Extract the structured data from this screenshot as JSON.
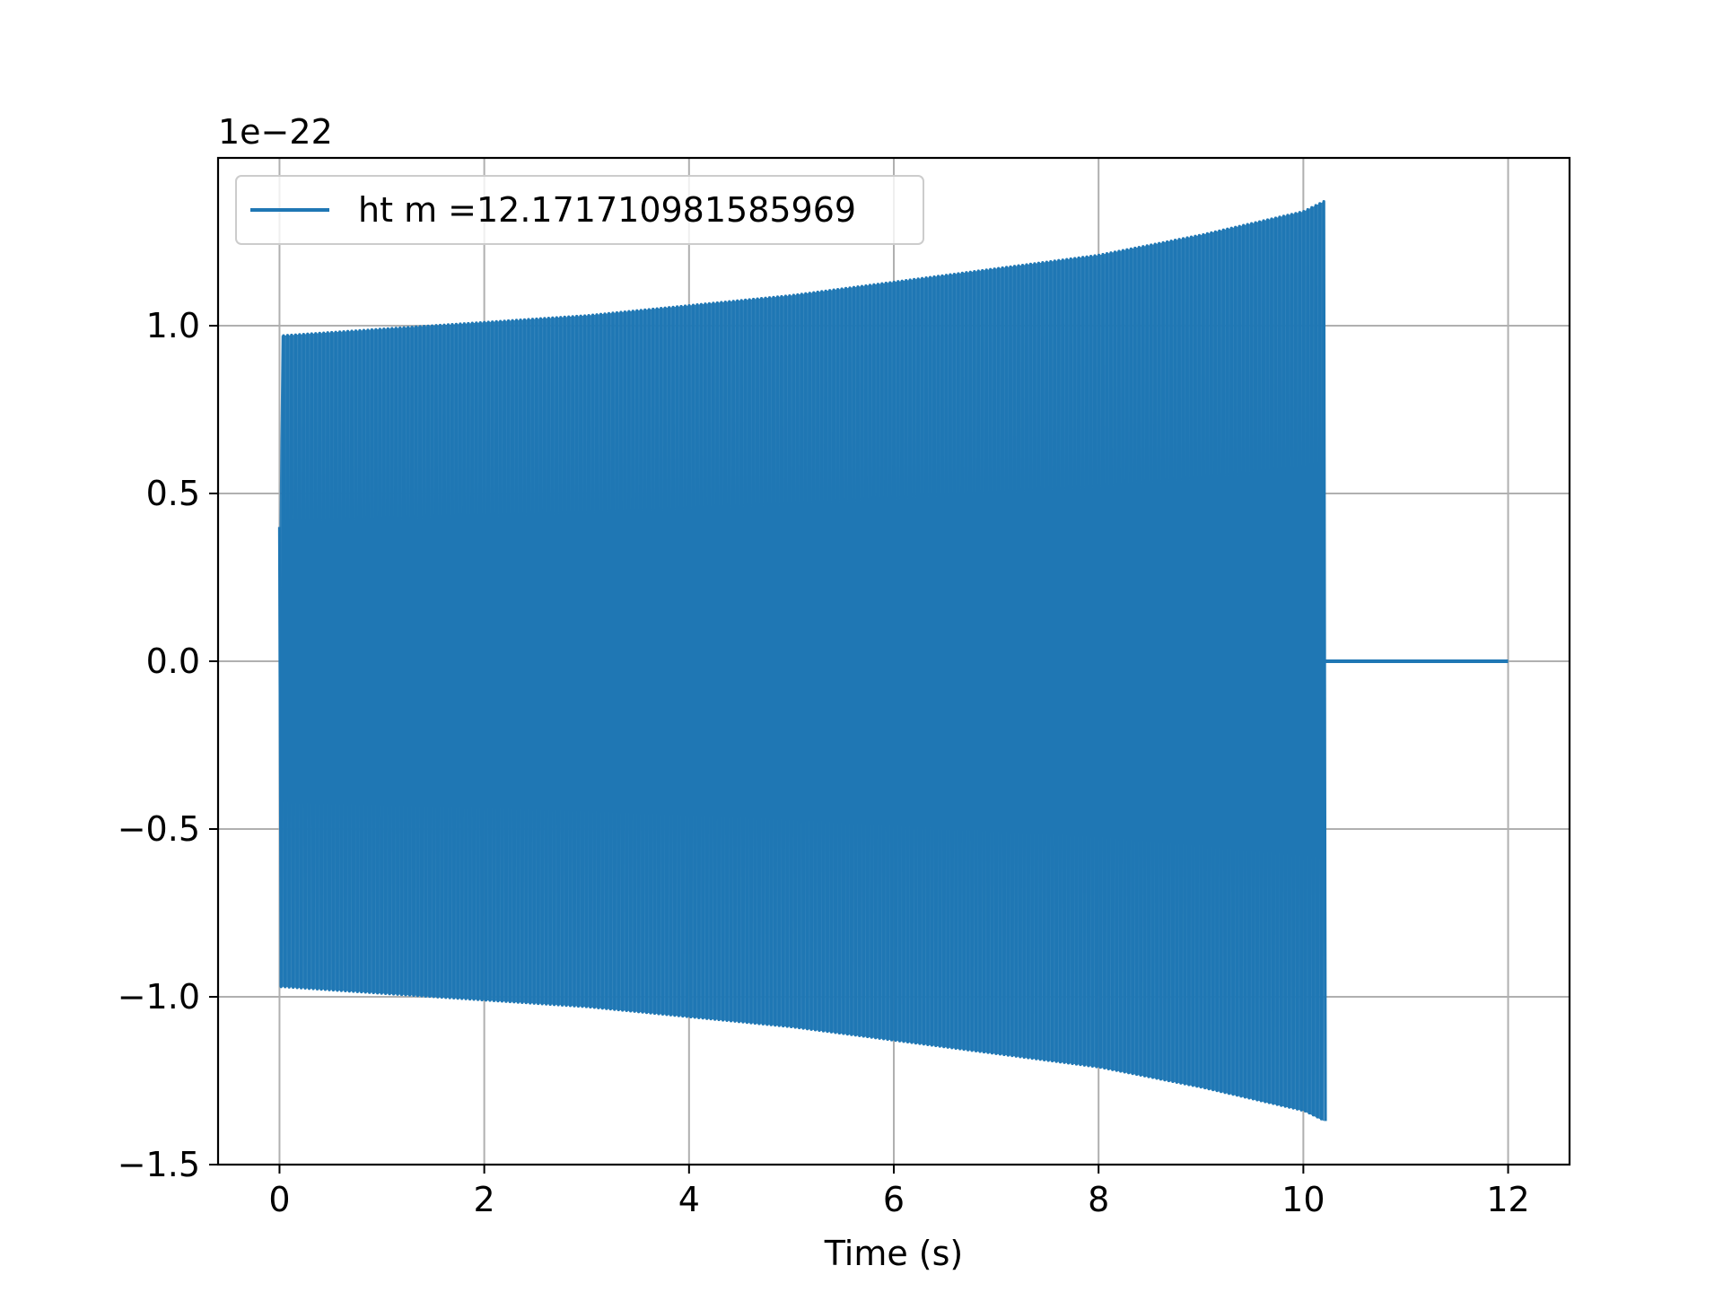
{
  "chart_data": {
    "type": "line",
    "title": "",
    "xlabel": "Time (s)",
    "ylabel": "",
    "offset_text": "1e−22",
    "xlim": [
      -0.6,
      12.6
    ],
    "ylim": [
      -1.5,
      1.5
    ],
    "x_ticks": [
      0,
      2,
      4,
      6,
      8,
      10,
      12
    ],
    "x_tick_labels": [
      "0",
      "2",
      "4",
      "6",
      "8",
      "10",
      "12"
    ],
    "y_ticks": [
      -1.5,
      -1.0,
      -0.5,
      0.0,
      0.5,
      1.0
    ],
    "y_tick_labels": [
      "−1.5",
      "−1.0",
      "−0.5",
      "0.0",
      "0.5",
      "1.0"
    ],
    "grid": true,
    "legend_position": "top-left",
    "series": [
      {
        "name": "ht m =12.171710981585969",
        "color": "#1f77b4",
        "description_points": {
          "envelope_x": [
            0.0,
            0.02,
            1,
            2,
            3,
            4,
            5,
            6,
            7,
            8,
            9,
            10,
            10.2
          ],
          "envelope_upper": [
            0.4,
            0.97,
            0.99,
            1.01,
            1.03,
            1.06,
            1.09,
            1.13,
            1.17,
            1.21,
            1.27,
            1.34,
            1.37
          ],
          "envelope_lower": [
            -0.97,
            -0.97,
            -0.99,
            -1.01,
            -1.03,
            -1.06,
            -1.09,
            -1.13,
            -1.17,
            -1.21,
            -1.27,
            -1.34,
            -1.37
          ],
          "zero_segment_x": [
            10.2,
            12.0
          ],
          "zero_segment_y": [
            0.0,
            0.0
          ]
        }
      }
    ]
  }
}
